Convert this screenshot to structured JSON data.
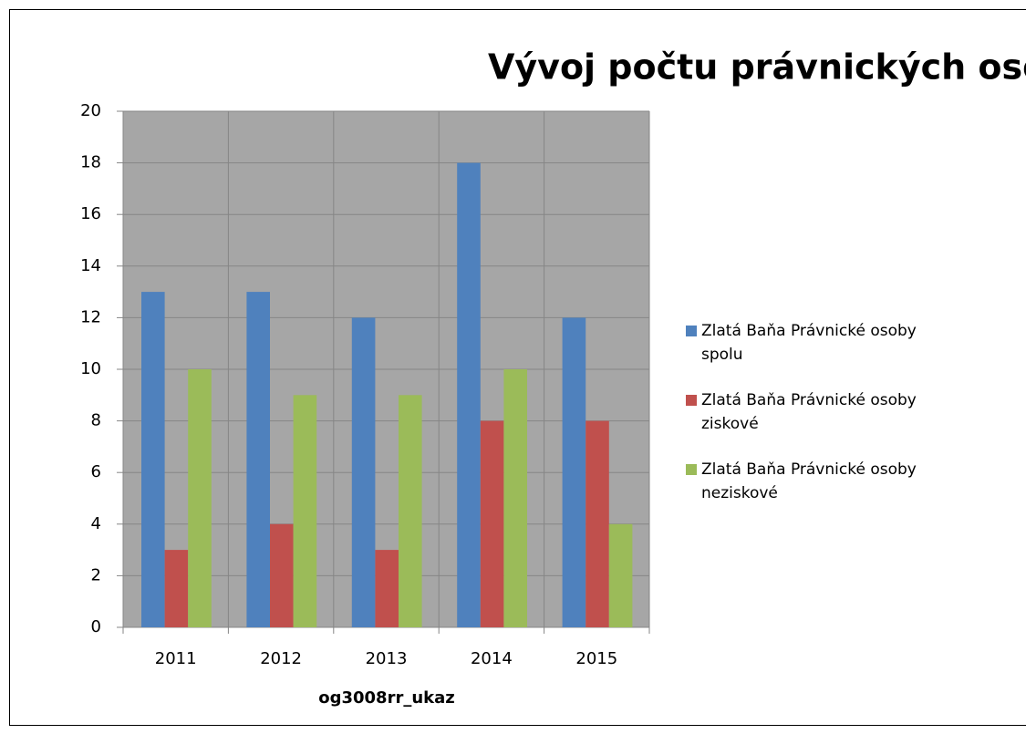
{
  "chart_data": {
    "type": "bar",
    "title": "Vývoj počtu právnických osôb",
    "x_label": "og3008rr_ukaz",
    "categories": [
      "2011",
      "2012",
      "2013",
      "2014",
      "2015"
    ],
    "series": [
      {
        "name": "Zlatá Baňa Právnické osoby spolu",
        "color": "#4f81bd",
        "values": [
          13,
          13,
          12,
          18,
          12
        ]
      },
      {
        "name": "Zlatá Baňa Právnické osoby ziskové",
        "color": "#c0504d",
        "values": [
          3,
          4,
          3,
          8,
          8
        ]
      },
      {
        "name": "Zlatá Baňa Právnické osoby neziskové",
        "color": "#9bbb59",
        "values": [
          10,
          9,
          9,
          10,
          4
        ]
      }
    ],
    "ylim": [
      0,
      20
    ],
    "yticks": [
      0,
      2,
      4,
      6,
      8,
      10,
      12,
      14,
      16,
      18,
      20
    ],
    "grid": true,
    "legend": "right"
  }
}
